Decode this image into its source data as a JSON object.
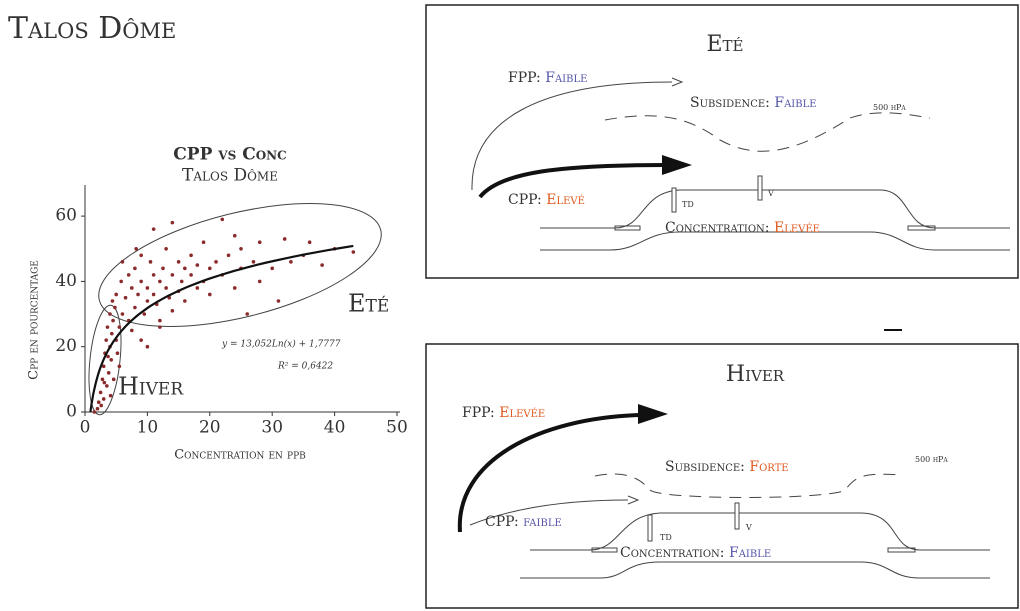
{
  "header": {
    "title": "Talos Dôme"
  },
  "chart_data": {
    "type": "scatter",
    "title": "CPP vs Conc",
    "subtitle": "Talos Dôme",
    "x_label": "Concentration en ppb",
    "y_label": "Cpp en pourcentage",
    "color": "#8b2a2a",
    "xlim": [
      0,
      50
    ],
    "xticks": [
      0,
      10,
      20,
      30,
      40,
      50
    ],
    "ylim": [
      0,
      68
    ],
    "yticks": [
      0,
      20,
      40,
      60
    ],
    "x": [
      1.5,
      2,
      2.2,
      2.5,
      2.8,
      3,
      3,
      3.2,
      3.4,
      3.5,
      3.6,
      3.8,
      4,
      4,
      4.2,
      4.3,
      4.5,
      4.6,
      4.8,
      5,
      5,
      5.2,
      5.5,
      5.8,
      6,
      2.6,
      3.1,
      3.7,
      4.1,
      4.4,
      6.5,
      7,
      7,
      7.5,
      8,
      8,
      8.5,
      9,
      9,
      9.5,
      10,
      10,
      10.5,
      11,
      11,
      11.5,
      12,
      12,
      12.5,
      13,
      13,
      13.5,
      14,
      14,
      15,
      15,
      15.5,
      16,
      16,
      17,
      17,
      18,
      18,
      19,
      19,
      20,
      20,
      21,
      22,
      22,
      23,
      24,
      24,
      25,
      25,
      26,
      27,
      28,
      28,
      30,
      31,
      32,
      33,
      35,
      36,
      38,
      40,
      43,
      6,
      7.5,
      9,
      10,
      5.5,
      8.2,
      11,
      12,
      14
    ],
    "values": [
      0,
      1,
      3,
      6,
      10,
      14,
      4,
      18,
      22,
      8,
      26,
      12,
      20,
      30,
      16,
      24,
      28,
      10,
      32,
      22,
      36,
      18,
      26,
      40,
      30,
      2,
      9,
      17,
      5,
      34,
      35,
      42,
      28,
      38,
      44,
      32,
      36,
      40,
      48,
      30,
      38,
      34,
      46,
      36,
      42,
      33,
      40,
      28,
      44,
      38,
      50,
      35,
      42,
      31,
      46,
      37,
      40,
      44,
      34,
      42,
      48,
      38,
      45,
      40,
      52,
      44,
      36,
      46,
      59,
      42,
      48,
      54,
      38,
      44,
      50,
      30,
      46,
      52,
      40,
      44,
      34,
      53,
      46,
      48,
      52,
      45,
      50,
      49,
      46,
      25,
      22,
      20,
      14,
      50,
      56,
      26,
      58
    ],
    "fit": {
      "equation": "y = 13,052Ln(x) + 1,7777",
      "slope": 13.052,
      "intercept": 1.7777,
      "r2": "R² = 0,6422"
    },
    "annotations": [
      "Eté",
      "Hiver"
    ]
  },
  "diagrams": [
    {
      "title": "Eté",
      "fpp": {
        "label": "FPP:",
        "value": "Faible"
      },
      "subsidence": {
        "label": "Subsidence:",
        "value": "Faible"
      },
      "pressure": "500 hPa",
      "cpp": {
        "label": "CPP:",
        "value": "Elevé"
      },
      "concentration": {
        "label": "Concentration:",
        "value": "Elevée"
      },
      "sites": [
        "TD",
        "V"
      ]
    },
    {
      "title": "Hiver",
      "fpp": {
        "label": "FPP:",
        "value": "Elevée"
      },
      "subsidence": {
        "label": "Subsidence:",
        "value": "Forte"
      },
      "pressure": "500 hPa",
      "cpp": {
        "label": "CPP:",
        "value": "faible"
      },
      "concentration": {
        "label": "Concentration:",
        "value": "Faible"
      },
      "sites": [
        "TD",
        "V"
      ]
    }
  ]
}
